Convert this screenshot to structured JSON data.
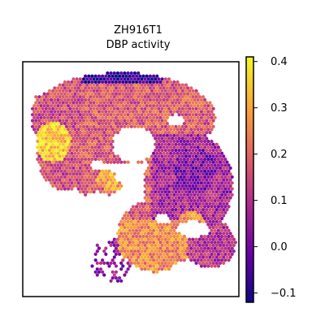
{
  "chart_data": {
    "type": "heatmap",
    "title_lines": [
      "ZH916T1",
      "DBP activity"
    ],
    "xlabel": "",
    "ylabel": "",
    "colormap": "plasma",
    "colorbar": {
      "range": [
        -0.12,
        0.41
      ],
      "ticks": [
        -0.1,
        0.0,
        0.1,
        0.2,
        0.3,
        0.4
      ],
      "tick_labels": [
        "−0.1",
        "0.0",
        "0.1",
        "0.2",
        "0.3",
        "0.4"
      ]
    },
    "axes_ticks_visible": false,
    "grid": false,
    "regions": [
      {
        "name": "upper band",
        "value": 0.18
      },
      {
        "name": "top edge",
        "value": -0.08
      },
      {
        "name": "left lobe",
        "value": 0.36
      },
      {
        "name": "upper-left",
        "value": 0.15
      },
      {
        "name": "right mass",
        "value": 0.08
      },
      {
        "name": "right core",
        "value": 0.02
      },
      {
        "name": "center streak",
        "value": 0.3
      },
      {
        "name": "lower-center",
        "value": 0.26
      },
      {
        "name": "lower-right",
        "value": 0.1
      },
      {
        "name": "scattered lower-left",
        "value": 0.05
      }
    ]
  },
  "colors": {
    "stops": [
      "#0d0887",
      "#6a00a8",
      "#b12a90",
      "#e16462",
      "#fca636",
      "#f0f921"
    ],
    "frame": "#000000",
    "background": "#ffffff"
  }
}
